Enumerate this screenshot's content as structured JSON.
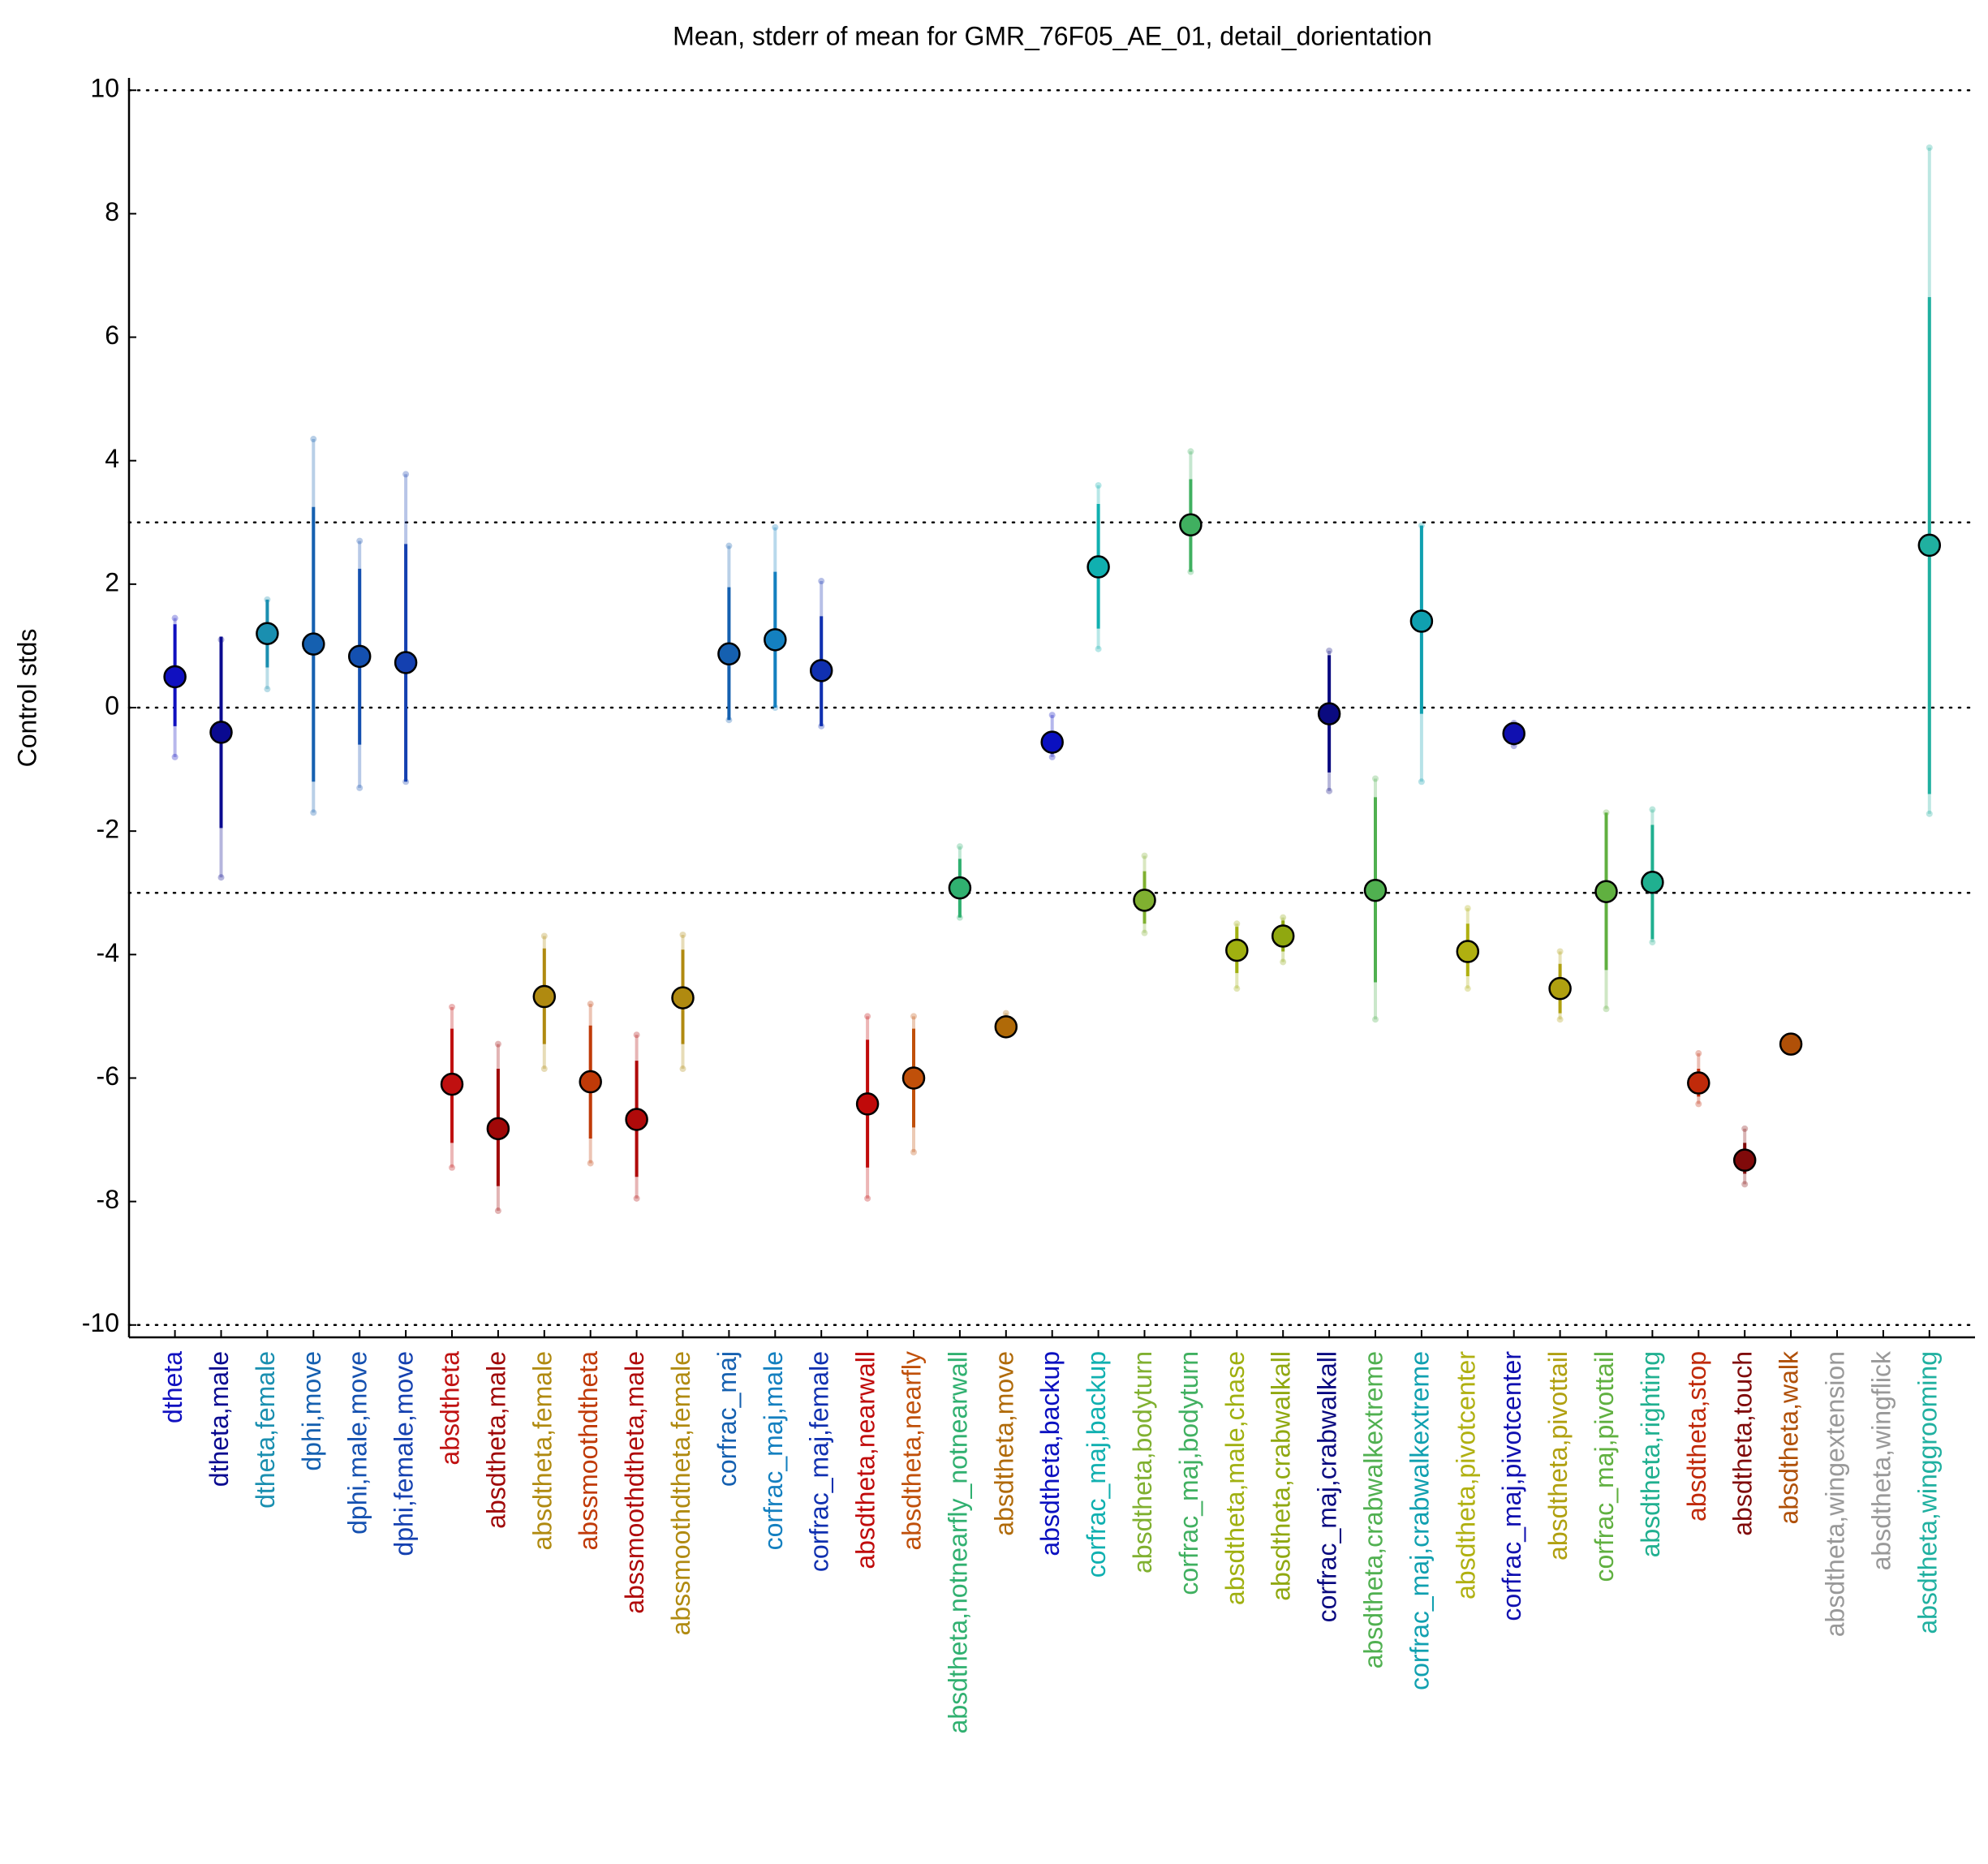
{
  "chart_data": {
    "type": "errorbar",
    "title": "Mean, stderr of mean for GMR_76F05_AE_01, detail_dorientation",
    "y_label": "Control stds",
    "categories": [
      "dtheta",
      "dtheta,male",
      "dtheta,female",
      "dphi,move",
      "dphi,male,move",
      "dphi,female,move",
      "absdtheta",
      "absdtheta,male",
      "absdtheta,female",
      "abssmoothdtheta",
      "abssmoothdtheta,male",
      "abssmoothdtheta,female",
      "corfrac_maj",
      "corfrac_maj,male",
      "corfrac_maj,female",
      "absdtheta,nearwall",
      "absdtheta,nearfly",
      "absdtheta,notnearfly_notnearwall",
      "absdtheta,move",
      "absdtheta,backup",
      "corfrac_maj,backup",
      "absdtheta,bodyturn",
      "corfrac_maj,bodyturn",
      "absdtheta,male,chase",
      "absdtheta,crabwalkall",
      "corfrac_maj,crabwalkall",
      "absdtheta,crabwalkextreme",
      "corfrac_maj,crabwalkextreme",
      "absdtheta,pivotcenter",
      "corfrac_maj,pivotcenter",
      "absdtheta,pivottail",
      "corfrac_maj,pivottail",
      "absdtheta,righting",
      "absdtheta,stop",
      "absdtheta,touch",
      "absdtheta,walk",
      "absdtheta,wingextension",
      "absdtheta,wingflick",
      "absdtheta,winggrooming"
    ],
    "values": [
      0.5,
      -0.4,
      1.2,
      1.03,
      0.83,
      0.73,
      -6.1,
      -6.82,
      -4.68,
      -6.06,
      -6.67,
      -4.7,
      0.87,
      1.1,
      0.6,
      -6.42,
      -6.0,
      -2.92,
      -5.17,
      -0.56,
      2.28,
      -3.12,
      2.96,
      -3.93,
      -3.7,
      -0.1,
      -2.96,
      1.4,
      -3.95,
      -0.42,
      -4.55,
      -2.98,
      -2.83,
      -6.08,
      -7.33,
      -5.45,
      null,
      null,
      2.63
    ],
    "inner": [
      [
        -0.3,
        1.35
      ],
      [
        -1.95,
        1.15
      ],
      [
        0.65,
        1.75
      ],
      [
        -1.2,
        3.25
      ],
      [
        -0.6,
        2.25
      ],
      [
        -1.2,
        2.65
      ],
      [
        -7.05,
        -5.2
      ],
      [
        -7.75,
        -5.85
      ],
      [
        -5.45,
        -3.9
      ],
      [
        -6.98,
        -5.15
      ],
      [
        -7.6,
        -5.72
      ],
      [
        -5.45,
        -3.92
      ],
      [
        -0.2,
        1.95
      ],
      [
        0,
        2.2
      ],
      [
        -0.3,
        1.48
      ],
      [
        -7.45,
        -5.38
      ],
      [
        -6.8,
        -5.2
      ],
      [
        -3.4,
        -2.45
      ],
      [
        -5.25,
        -5.1
      ],
      [
        -0.75,
        -0.38
      ],
      [
        1.28,
        3.3
      ],
      [
        -3.5,
        -2.65
      ],
      [
        2.2,
        3.7
      ],
      [
        -4.3,
        -3.55
      ],
      [
        -3.95,
        -3.45
      ],
      [
        -1.05,
        0.85
      ],
      [
        -4.45,
        -1.45
      ],
      [
        -0.1,
        2.95
      ],
      [
        -4.35,
        -3.5
      ],
      [
        -0.55,
        -0.28
      ],
      [
        -4.95,
        -4.15
      ],
      [
        -4.25,
        -1.7
      ],
      [
        -3.75,
        -1.9
      ],
      [
        -6.3,
        -5.85
      ],
      [
        -7.55,
        -7.05
      ],
      [
        -5.5,
        -5.4
      ],
      null,
      null,
      [
        -1.4,
        6.65
      ]
    ],
    "outer": [
      [
        -0.8,
        1.45
      ],
      [
        -2.75,
        1.1
      ],
      [
        0.3,
        1.75
      ],
      [
        -1.7,
        4.35
      ],
      [
        -1.3,
        2.7
      ],
      [
        -1.2,
        3.78
      ],
      [
        -7.45,
        -4.85
      ],
      [
        -8.15,
        -5.45
      ],
      [
        -5.85,
        -3.7
      ],
      [
        -7.38,
        -4.8
      ],
      [
        -7.95,
        -5.3
      ],
      [
        -5.85,
        -3.68
      ],
      [
        -0.2,
        2.62
      ],
      [
        0,
        2.92
      ],
      [
        -0.3,
        2.05
      ],
      [
        -7.95,
        -5.0
      ],
      [
        -7.2,
        -5.0
      ],
      [
        -3.4,
        -2.25
      ],
      [
        -5.3,
        -4.95
      ],
      [
        -0.8,
        -0.12
      ],
      [
        0.95,
        3.6
      ],
      [
        -3.65,
        -2.4
      ],
      [
        2.2,
        4.15
      ],
      [
        -4.55,
        -3.5
      ],
      [
        -4.12,
        -3.4
      ],
      [
        -1.35,
        0.92
      ],
      [
        -5.05,
        -1.15
      ],
      [
        -1.2,
        2.95
      ],
      [
        -4.55,
        -3.25
      ],
      [
        -0.62,
        -0.25
      ],
      [
        -5.05,
        -3.95
      ],
      [
        -4.88,
        -1.7
      ],
      [
        -3.8,
        -1.65
      ],
      [
        -6.42,
        -5.6
      ],
      [
        -7.72,
        -6.82
      ],
      [
        -5.5,
        -5.4
      ],
      null,
      null,
      [
        -1.72,
        9.07
      ]
    ],
    "colors": [
      "#1010c0",
      "#0a0a90",
      "#1a8fb0",
      "#1560b0",
      "#1450b0",
      "#1440b0",
      "#c01010",
      "#a00808",
      "#b08a10",
      "#c03a08",
      "#b00a0a",
      "#b08a10",
      "#1560b0",
      "#1480c0",
      "#1030b0",
      "#c00a0a",
      "#c0500a",
      "#30b070",
      "#b06a08",
      "#0a10c0",
      "#10b0b0",
      "#80b030",
      "#40b060",
      "#a0b010",
      "#90a810",
      "#0a0a80",
      "#50b050",
      "#10a0b0",
      "#b0b010",
      "#1010b0",
      "#b0a010",
      "#60b040",
      "#20b090",
      "#c02a0a",
      "#800a0a",
      "#b05008",
      "#999999",
      "#999999",
      "#20b0a0"
    ],
    "ylim": [
      -10.2,
      10.2
    ],
    "yticks": [
      -10,
      -8,
      -6,
      -4,
      -2,
      0,
      2,
      4,
      6,
      8,
      10
    ],
    "hlines": [
      -10,
      -3,
      0,
      3,
      10
    ]
  }
}
